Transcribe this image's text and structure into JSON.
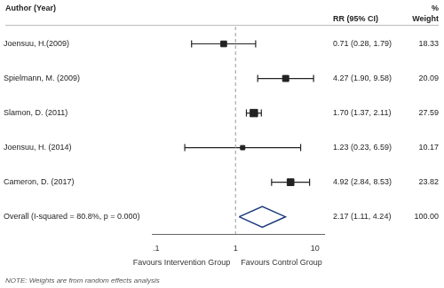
{
  "chart_data": {
    "type": "forest",
    "headers": {
      "author": "Author (Year)",
      "pct": "%",
      "estimate": "RR (95% CI)",
      "weight": "Weight"
    },
    "studies": [
      {
        "label": "Joensuu, H.(2009)",
        "rr": 0.71,
        "ci_lo": 0.28,
        "ci_hi": 1.79,
        "weight": 18.33,
        "text": "0.71 (0.28, 1.79)",
        "weight_label": "18.33"
      },
      {
        "label": "Spielmann, M. (2009)",
        "rr": 4.27,
        "ci_lo": 1.9,
        "ci_hi": 9.58,
        "weight": 20.09,
        "text": "4.27 (1.90, 9.58)",
        "weight_label": "20.09"
      },
      {
        "label": "Slamon, D. (2011)",
        "rr": 1.7,
        "ci_lo": 1.37,
        "ci_hi": 2.11,
        "weight": 27.59,
        "text": "1.70 (1.37, 2.11)",
        "weight_label": "27.59"
      },
      {
        "label": "Joensuu, H. (2014)",
        "rr": 1.23,
        "ci_lo": 0.23,
        "ci_hi": 6.59,
        "weight": 10.17,
        "text": "1.23 (0.23, 6.59)",
        "weight_label": "10.17"
      },
      {
        "label": "Cameron, D. (2017)",
        "rr": 4.92,
        "ci_lo": 2.84,
        "ci_hi": 8.53,
        "weight": 23.82,
        "text": "4.92 (2.84, 8.53)",
        "weight_label": "23.82"
      }
    ],
    "overall": {
      "label": "Overall (I-squared = 80.8%, p = 0.000)",
      "rr": 2.17,
      "ci_lo": 1.11,
      "ci_hi": 4.24,
      "text": "2.17 (1.11, 4.24)",
      "weight_label": "100.00",
      "color": "#1a3a7a"
    },
    "note": "NOTE: Weights are from random effects analysis",
    "x_label_left": "Favours Intervention Group",
    "x_label_right": "Favours Control Group",
    "log": "x",
    "xlim": [
      0.09,
      13
    ],
    "xticks": [
      {
        "value": 0.1,
        "label": ".1"
      },
      1,
      10
    ],
    "null_line": 1,
    "grid": false,
    "color": "#222222"
  }
}
